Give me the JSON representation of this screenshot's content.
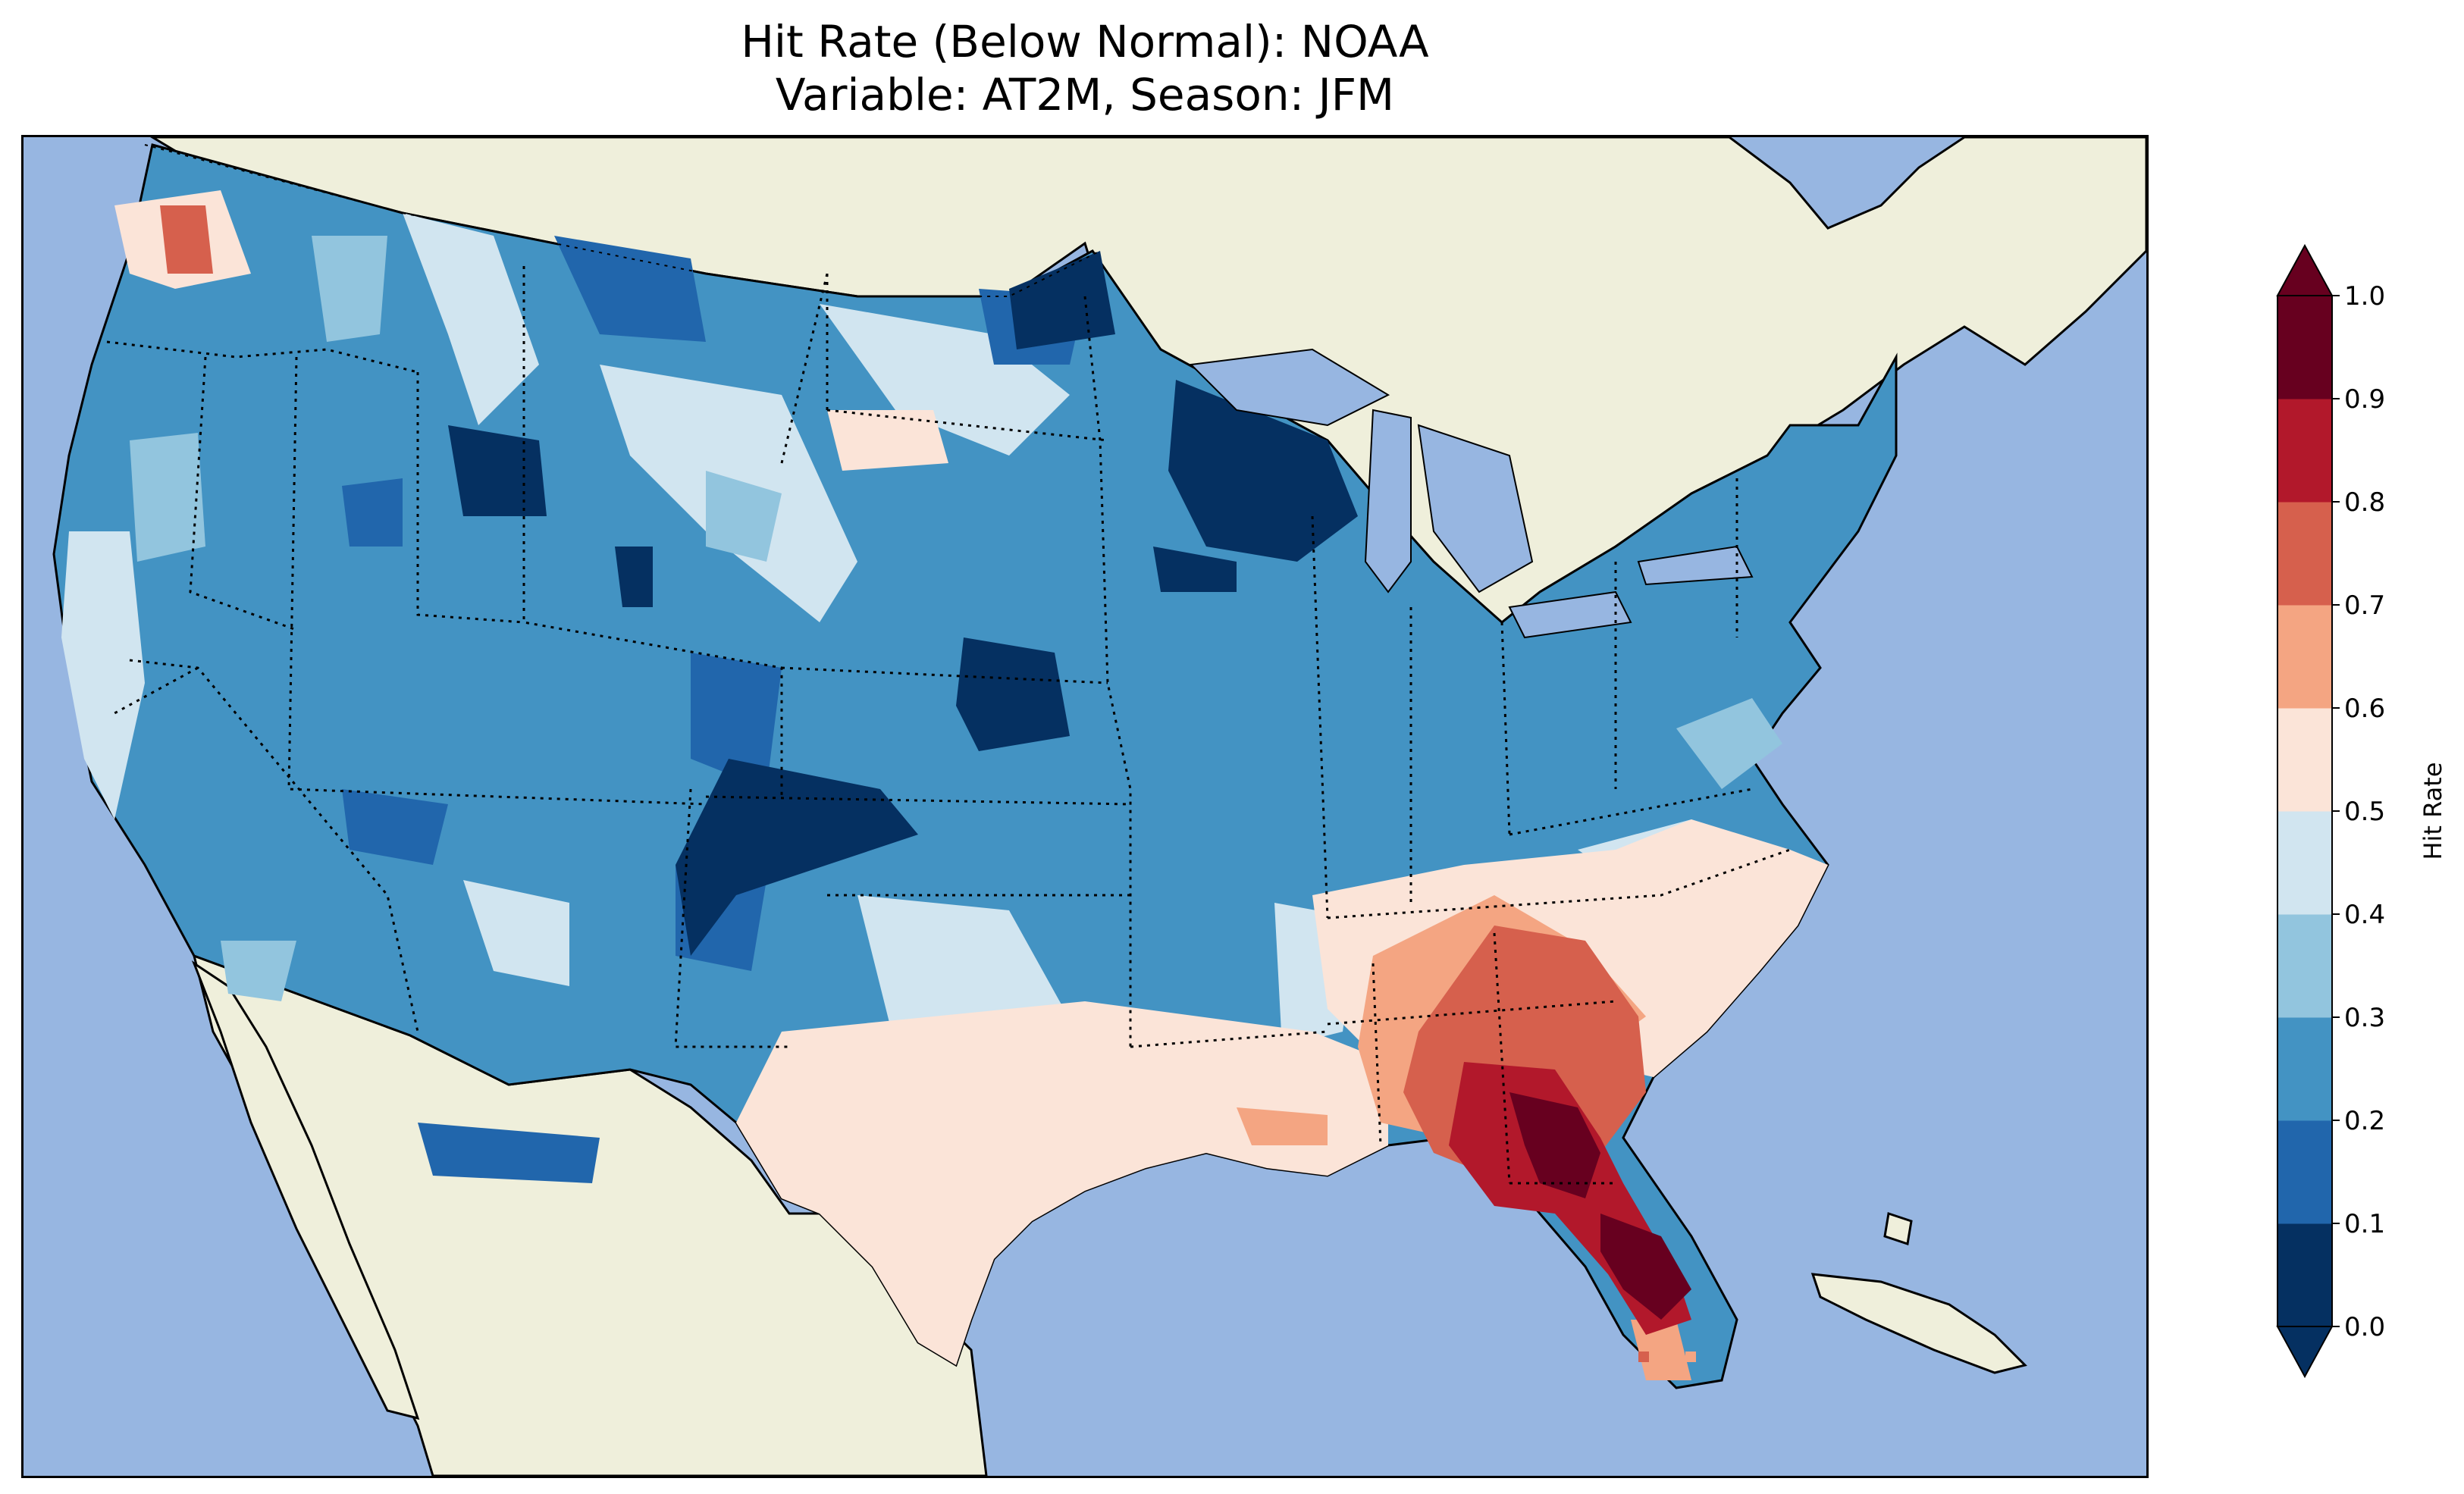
{
  "title": {
    "line1": "Hit Rate (Below Normal): NOAA",
    "line2": "Variable: AT2M, Season: JFM"
  },
  "colorbar": {
    "label": "Hit Rate",
    "ticks": [
      "0.0",
      "0.1",
      "0.2",
      "0.3",
      "0.4",
      "0.5",
      "0.6",
      "0.7",
      "0.8",
      "0.9",
      "1.0"
    ],
    "bins": [
      {
        "from": 0.0,
        "to": 0.1,
        "color": "#053061"
      },
      {
        "from": 0.1,
        "to": 0.2,
        "color": "#2166ac"
      },
      {
        "from": 0.2,
        "to": 0.3,
        "color": "#4393c3"
      },
      {
        "from": 0.3,
        "to": 0.4,
        "color": "#92c5de"
      },
      {
        "from": 0.4,
        "to": 0.5,
        "color": "#d1e5f0"
      },
      {
        "from": 0.5,
        "to": 0.6,
        "color": "#fbe4d8"
      },
      {
        "from": 0.6,
        "to": 0.7,
        "color": "#f4a582"
      },
      {
        "from": 0.7,
        "to": 0.8,
        "color": "#d6604d"
      },
      {
        "from": 0.8,
        "to": 0.9,
        "color": "#b2182b"
      },
      {
        "from": 0.9,
        "to": 1.0,
        "color": "#67001f"
      }
    ],
    "under_color": "#053061",
    "over_color": "#67001f"
  },
  "map_colors": {
    "ocean": "#97b6e1",
    "land": "#efefdb",
    "lakes": "#97b6e1",
    "borders": "#000000"
  }
}
